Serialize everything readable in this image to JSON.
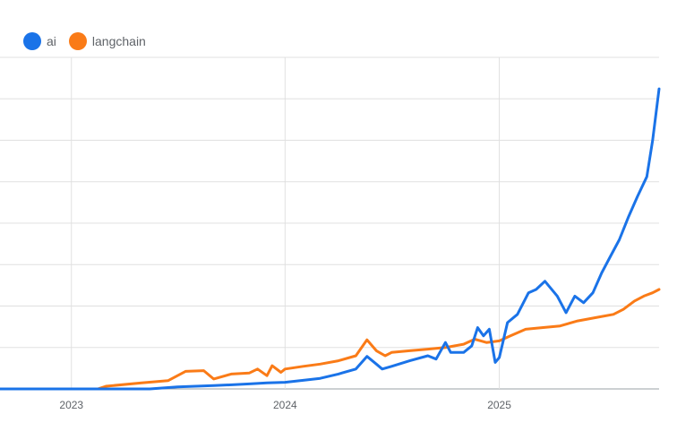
{
  "chart_data": {
    "type": "line",
    "x_ticks": [
      "2023",
      "2024",
      "2025"
    ],
    "legend_position": "top-left",
    "grid": true,
    "xlim": [
      "2022-09-01",
      "2025-10-01"
    ],
    "ylim": [
      0,
      100
    ],
    "series": [
      {
        "name": "ai",
        "color": "#1a73e8",
        "points": [
          [
            "2022-09-01",
            0
          ],
          [
            "2023-01-01",
            0
          ],
          [
            "2023-05-15",
            0
          ],
          [
            "2023-07-01",
            0.6
          ],
          [
            "2023-09-01",
            1.0
          ],
          [
            "2023-11-01",
            1.5
          ],
          [
            "2023-12-01",
            1.8
          ],
          [
            "2024-01-01",
            2.0
          ],
          [
            "2024-02-01",
            2.6
          ],
          [
            "2024-03-01",
            3.2
          ],
          [
            "2024-04-01",
            4.5
          ],
          [
            "2024-05-01",
            6.0
          ],
          [
            "2024-05-20",
            9.8
          ],
          [
            "2024-06-05",
            7.5
          ],
          [
            "2024-06-15",
            6.0
          ],
          [
            "2024-07-01",
            6.8
          ],
          [
            "2024-08-01",
            8.5
          ],
          [
            "2024-09-01",
            10.0
          ],
          [
            "2024-09-15",
            9.0
          ],
          [
            "2024-10-01",
            14.0
          ],
          [
            "2024-10-10",
            11.0
          ],
          [
            "2024-11-01",
            11.0
          ],
          [
            "2024-11-15",
            13.0
          ],
          [
            "2024-11-25",
            18.5
          ],
          [
            "2024-12-05",
            16.0
          ],
          [
            "2024-12-15",
            18.0
          ],
          [
            "2024-12-25",
            8.0
          ],
          [
            "2025-01-01",
            9.5
          ],
          [
            "2025-01-15",
            20.0
          ],
          [
            "2025-02-01",
            22.5
          ],
          [
            "2025-02-20",
            29.0
          ],
          [
            "2025-03-05",
            30.0
          ],
          [
            "2025-03-20",
            32.5
          ],
          [
            "2025-04-10",
            28.0
          ],
          [
            "2025-04-25",
            23.0
          ],
          [
            "2025-05-10",
            28.0
          ],
          [
            "2025-05-25",
            26.0
          ],
          [
            "2025-06-10",
            29.0
          ],
          [
            "2025-06-25",
            35.0
          ],
          [
            "2025-07-10",
            40.0
          ],
          [
            "2025-07-25",
            45.0
          ],
          [
            "2025-08-10",
            52.0
          ],
          [
            "2025-08-25",
            58.0
          ],
          [
            "2025-09-10",
            64.0
          ],
          [
            "2025-09-20",
            75.0
          ],
          [
            "2025-10-01",
            90.5
          ]
        ]
      },
      {
        "name": "langchain",
        "color": "#fa7b17",
        "points": [
          [
            "2022-09-01",
            0
          ],
          [
            "2023-02-15",
            0
          ],
          [
            "2023-03-01",
            0.8
          ],
          [
            "2023-05-01",
            1.8
          ],
          [
            "2023-06-15",
            2.5
          ],
          [
            "2023-07-15",
            5.3
          ],
          [
            "2023-08-15",
            5.5
          ],
          [
            "2023-09-01",
            3.0
          ],
          [
            "2023-10-01",
            4.5
          ],
          [
            "2023-11-01",
            4.8
          ],
          [
            "2023-11-15",
            6.0
          ],
          [
            "2023-12-01",
            4.0
          ],
          [
            "2023-12-10",
            7.0
          ],
          [
            "2023-12-25",
            5.0
          ],
          [
            "2024-01-01",
            6.0
          ],
          [
            "2024-02-01",
            6.8
          ],
          [
            "2024-03-01",
            7.5
          ],
          [
            "2024-04-01",
            8.5
          ],
          [
            "2024-05-01",
            10.0
          ],
          [
            "2024-05-20",
            14.8
          ],
          [
            "2024-06-05",
            11.5
          ],
          [
            "2024-06-20",
            10.0
          ],
          [
            "2024-07-01",
            11.0
          ],
          [
            "2024-08-01",
            11.5
          ],
          [
            "2024-09-01",
            12.0
          ],
          [
            "2024-10-01",
            12.5
          ],
          [
            "2024-11-01",
            13.5
          ],
          [
            "2024-11-20",
            15.0
          ],
          [
            "2024-12-10",
            14.0
          ],
          [
            "2025-01-01",
            14.5
          ],
          [
            "2025-01-20",
            16.0
          ],
          [
            "2025-02-15",
            18.0
          ],
          [
            "2025-03-15",
            18.5
          ],
          [
            "2025-04-15",
            19.0
          ],
          [
            "2025-05-15",
            20.5
          ],
          [
            "2025-06-15",
            21.5
          ],
          [
            "2025-07-15",
            22.5
          ],
          [
            "2025-08-01",
            24.0
          ],
          [
            "2025-08-20",
            26.5
          ],
          [
            "2025-09-05",
            28.0
          ],
          [
            "2025-09-20",
            29.0
          ],
          [
            "2025-10-01",
            30.0
          ]
        ]
      }
    ]
  }
}
